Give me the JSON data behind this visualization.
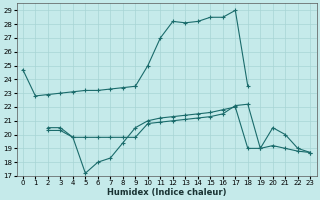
{
  "bg_color": "#c5eaea",
  "line_color": "#1a6b6b",
  "grid_color": "#a8d5d5",
  "xlabel": "Humidex (Indice chaleur)",
  "xlim": [
    -0.5,
    23.5
  ],
  "ylim": [
    17,
    29.5
  ],
  "yticks": [
    17,
    18,
    19,
    20,
    21,
    22,
    23,
    24,
    25,
    26,
    27,
    28,
    29
  ],
  "xticks": [
    0,
    1,
    2,
    3,
    4,
    5,
    6,
    7,
    8,
    9,
    10,
    11,
    12,
    13,
    14,
    15,
    16,
    17,
    18,
    19,
    20,
    21,
    22,
    23
  ],
  "lines": [
    {
      "x": [
        0,
        1,
        2,
        3,
        4,
        5,
        6,
        7,
        8,
        9
      ],
      "y": [
        24.7,
        22.8,
        22.9,
        23.0,
        23.1,
        23.2,
        23.2,
        23.3,
        23.4,
        23.5
      ]
    },
    {
      "x": [
        9,
        10,
        11,
        12,
        13,
        14,
        15,
        16,
        17,
        18
      ],
      "y": [
        23.5,
        25.0,
        27.0,
        28.2,
        28.1,
        28.2,
        28.5,
        28.5,
        29.0,
        23.5
      ]
    },
    {
      "x": [
        2,
        3,
        4,
        5,
        6,
        7,
        8,
        9,
        10,
        11,
        12,
        13,
        14,
        15,
        16,
        17,
        18,
        19,
        20,
        21,
        22,
        23
      ],
      "y": [
        20.5,
        20.5,
        19.8,
        17.2,
        18.0,
        18.3,
        19.4,
        20.5,
        21.0,
        21.2,
        21.3,
        21.4,
        21.5,
        21.6,
        21.8,
        22.0,
        19.0,
        19.0,
        19.2,
        19.0,
        18.8,
        18.7
      ]
    },
    {
      "x": [
        2,
        3,
        4,
        5,
        6,
        7,
        8,
        9,
        10,
        11,
        12,
        13,
        14,
        15,
        16,
        17,
        18,
        19,
        20,
        21,
        22,
        23
      ],
      "y": [
        20.3,
        20.3,
        19.8,
        19.8,
        19.8,
        19.8,
        19.8,
        19.8,
        20.8,
        20.9,
        21.0,
        21.1,
        21.2,
        21.3,
        21.5,
        22.1,
        22.2,
        19.0,
        20.5,
        20.0,
        19.0,
        18.7
      ]
    }
  ]
}
